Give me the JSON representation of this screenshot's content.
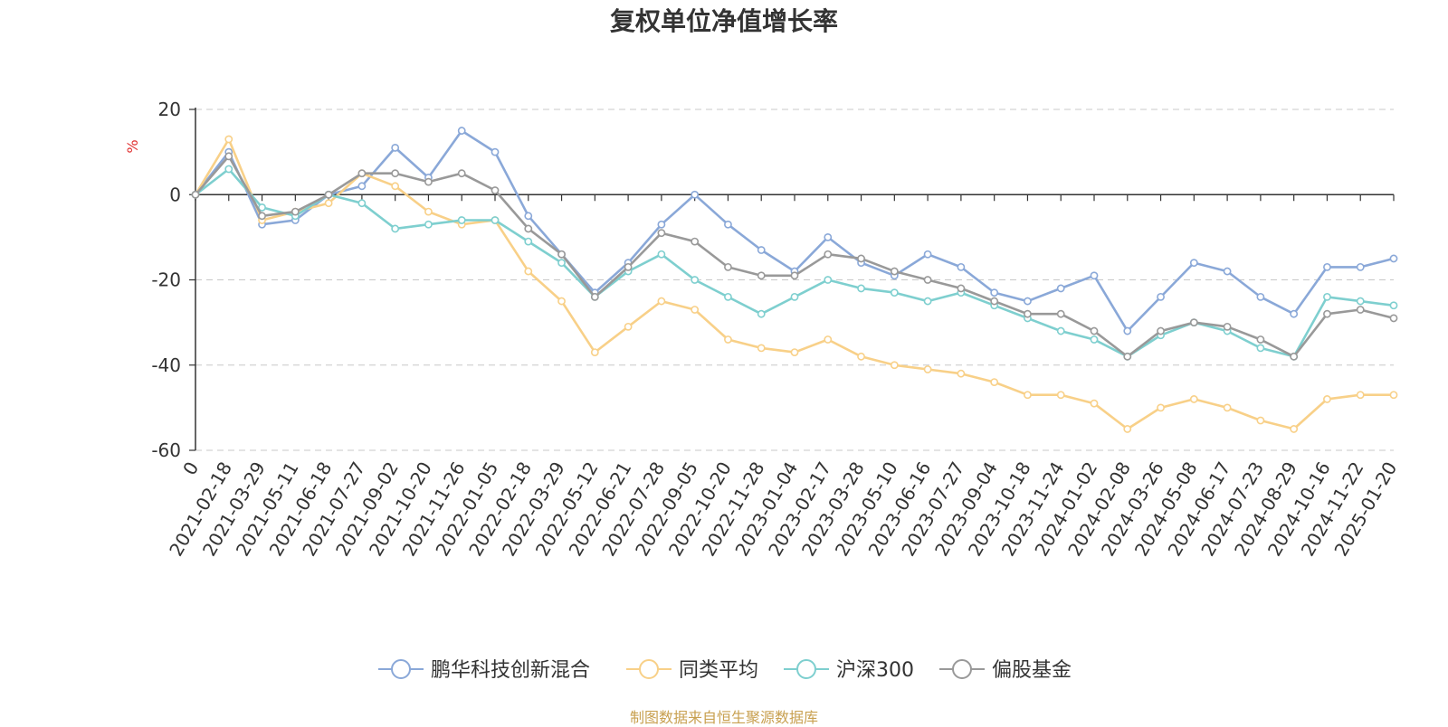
{
  "chart_data": {
    "type": "line",
    "title": "复权单位净值增长率",
    "ylabel": "%",
    "xlabel": "",
    "ylim": [
      -60,
      20
    ],
    "yticks": [
      20,
      0,
      -20,
      -40,
      -60
    ],
    "grid": true,
    "legend_position": "bottom-center",
    "x": [
      "0",
      "2021-02-18",
      "2021-03-29",
      "2021-05-11",
      "2021-06-18",
      "2021-07-27",
      "2021-09-02",
      "2021-10-20",
      "2021-11-26",
      "2022-01-05",
      "2022-02-18",
      "2022-03-29",
      "2022-05-12",
      "2022-06-21",
      "2022-07-28",
      "2022-09-05",
      "2022-10-20",
      "2022-11-28",
      "2023-01-04",
      "2023-02-17",
      "2023-03-28",
      "2023-05-10",
      "2023-06-16",
      "2023-07-27",
      "2023-09-04",
      "2023-10-18",
      "2023-11-24",
      "2024-01-02",
      "2024-02-08",
      "2024-03-26",
      "2024-05-08",
      "2024-06-17",
      "2024-07-23",
      "2024-08-29",
      "2024-10-16",
      "2024-11-22",
      "2025-01-20"
    ],
    "series": [
      {
        "name": "鹏华科技创新混合",
        "color": "#8aa8d8",
        "values": [
          0,
          10,
          -7,
          -6,
          0,
          2,
          11,
          4,
          15,
          10,
          -5,
          -14,
          -23,
          -16,
          -7,
          0,
          -7,
          -13,
          -18,
          -10,
          -16,
          -19,
          -14,
          -17,
          -23,
          -25,
          -22,
          -19,
          -32,
          -24,
          -16,
          -18,
          -24,
          -28,
          -17,
          -17,
          -15
        ]
      },
      {
        "name": "同类平均",
        "color": "#f8d088",
        "values": [
          0,
          13,
          -6,
          -4,
          -2,
          5,
          2,
          -4,
          -7,
          -6,
          -18,
          -25,
          -37,
          -31,
          -25,
          -27,
          -34,
          -36,
          -37,
          -34,
          -38,
          -40,
          -41,
          -42,
          -44,
          -47,
          -47,
          -49,
          -55,
          -50,
          -48,
          -50,
          -53,
          -55,
          -48,
          -47,
          -47
        ]
      },
      {
        "name": "沪深300",
        "color": "#7ecfcf",
        "values": [
          0,
          6,
          -3,
          -5,
          0,
          -2,
          -8,
          -7,
          -6,
          -6,
          -11,
          -16,
          -24,
          -18,
          -14,
          -20,
          -24,
          -28,
          -24,
          -20,
          -22,
          -23,
          -25,
          -23,
          -26,
          -29,
          -32,
          -34,
          -38,
          -33,
          -30,
          -32,
          -36,
          -38,
          -24,
          -25,
          -26
        ]
      },
      {
        "name": "偏股基金",
        "color": "#999999",
        "values": [
          0,
          9,
          -5,
          -4,
          0,
          5,
          5,
          3,
          5,
          1,
          -8,
          -14,
          -24,
          -17,
          -9,
          -11,
          -17,
          -19,
          -19,
          -14,
          -15,
          -18,
          -20,
          -22,
          -25,
          -28,
          -28,
          -32,
          -38,
          -32,
          -30,
          -31,
          -34,
          -38,
          -28,
          -27,
          -29
        ]
      }
    ]
  },
  "source_note": "制图数据来自恒生聚源数据库"
}
